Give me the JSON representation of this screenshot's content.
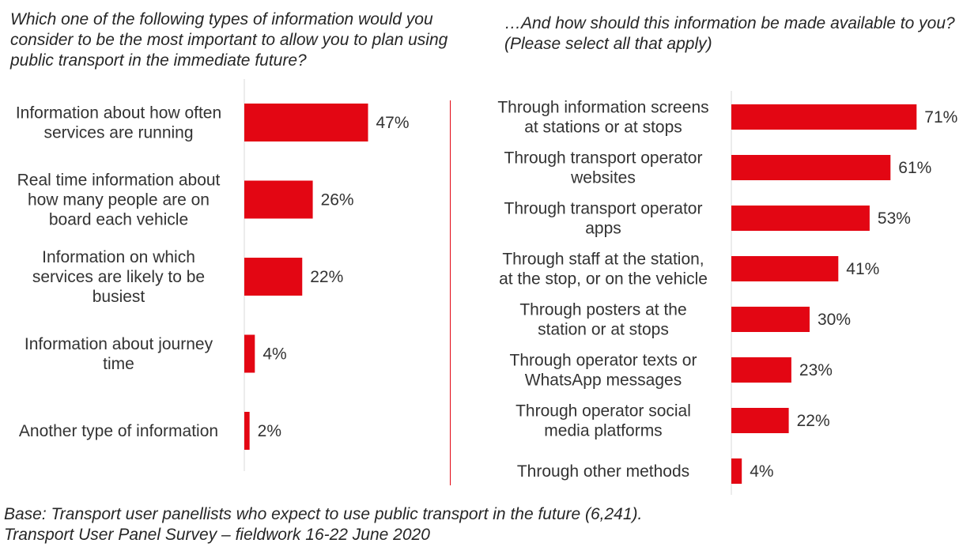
{
  "colors": {
    "bar": "#e30613",
    "text": "#333333"
  },
  "questions": {
    "left": "Which one of the following types of information would you consider to be the most important to allow you to plan using public transport in the immediate future?",
    "right": "…And how should this information be made available to you? (Please select all that apply)"
  },
  "footnotes": {
    "base": "Base: Transport user panellists who expect to use public transport in the future (6,241).",
    "source": "Transport User Panel Survey – fieldwork 16-22 June 2020"
  },
  "chart_data": [
    {
      "type": "bar",
      "orientation": "horizontal",
      "title": "Which one of the following types of information would you consider to be the most important to allow you to plan using public transport in the immediate future?",
      "categories": [
        [
          "Information about how often",
          "services are running"
        ],
        [
          "Real time information about",
          "how many people are on",
          "board each vehicle"
        ],
        [
          "Information on which",
          "services are likely to be",
          "busiest"
        ],
        [
          "Information about journey",
          "time"
        ],
        [
          "Another type of information"
        ]
      ],
      "values": [
        47,
        26,
        22,
        4,
        2
      ],
      "value_suffix": "%",
      "xlim": [
        0,
        100
      ],
      "grid": false,
      "legend": "none"
    },
    {
      "type": "bar",
      "orientation": "horizontal",
      "title": "…And how should this information be made available to you? (Please select all that apply)",
      "categories": [
        [
          "Through information screens",
          "at stations or at stops"
        ],
        [
          "Through transport operator",
          "websites"
        ],
        [
          "Through transport operator",
          "apps"
        ],
        [
          "Through staff at the station,",
          "at the stop, or on the vehicle"
        ],
        [
          "Through posters at the",
          "station or at stops"
        ],
        [
          "Through operator texts or",
          "WhatsApp messages"
        ],
        [
          "Through operator social",
          "media platforms"
        ],
        [
          "Through other methods"
        ]
      ],
      "values": [
        71,
        61,
        53,
        41,
        30,
        23,
        22,
        4
      ],
      "value_suffix": "%",
      "xlim": [
        0,
        100
      ],
      "grid": false,
      "legend": "none"
    }
  ]
}
